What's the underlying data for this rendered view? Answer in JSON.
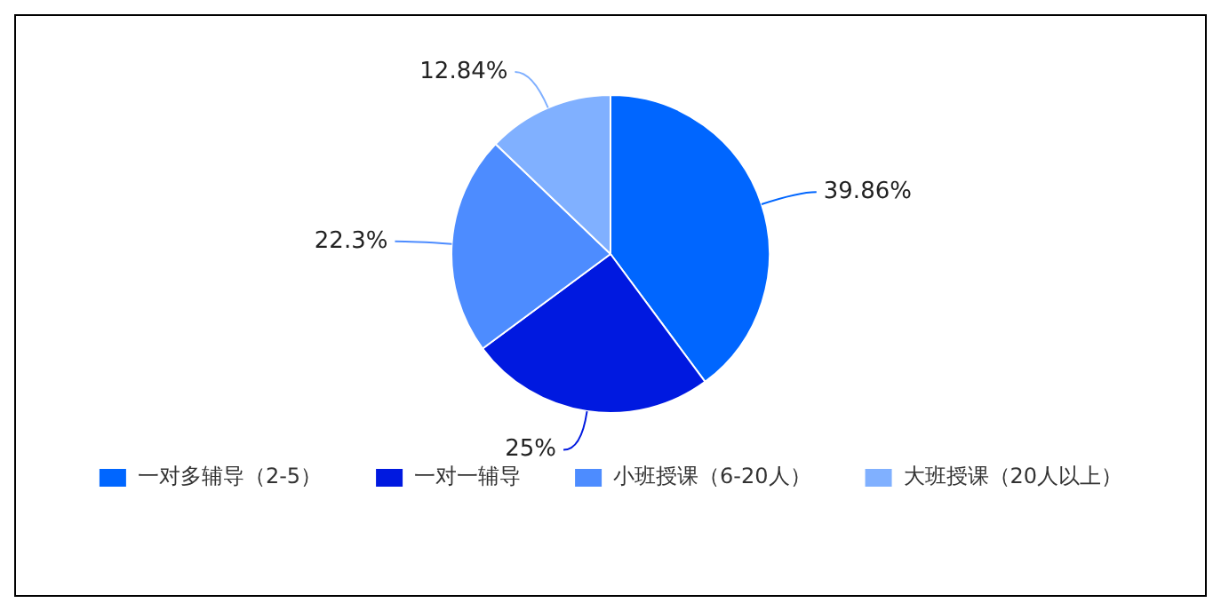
{
  "chart_data": {
    "type": "pie",
    "categories": [
      "一对多辅导（2-5）",
      "一对一辅导",
      "小班授课（6-20人）",
      "大班授课（20人以上）"
    ],
    "values": [
      39.86,
      25,
      22.3,
      12.84
    ],
    "colors": [
      "#0066ff",
      "#0019e0",
      "#4d8cff",
      "#80b0ff"
    ],
    "value_labels": [
      "39.86%",
      "25%",
      "22.3%",
      "12.84%"
    ],
    "legend": "bottom"
  }
}
